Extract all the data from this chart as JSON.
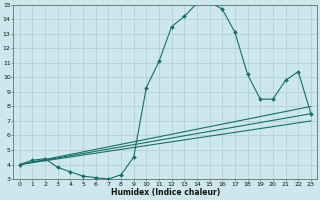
{
  "title": "",
  "xlabel": "Humidex (Indice chaleur)",
  "ylabel": "",
  "xlim": [
    -0.5,
    23.5
  ],
  "ylim": [
    3,
    15
  ],
  "xticks": [
    0,
    1,
    2,
    3,
    4,
    5,
    6,
    7,
    8,
    9,
    10,
    11,
    12,
    13,
    14,
    15,
    16,
    17,
    18,
    19,
    20,
    21,
    22,
    23
  ],
  "yticks": [
    3,
    4,
    5,
    6,
    7,
    8,
    9,
    10,
    11,
    12,
    13,
    14,
    15
  ],
  "bg_color": "#cce8ec",
  "line_color": "#1a6e6a",
  "grid_color": "#b8d4d8",
  "main_line": {
    "x": [
      0,
      1,
      2,
      3,
      4,
      5,
      6,
      7,
      8,
      9,
      10,
      11,
      12,
      13,
      14,
      15,
      16,
      17,
      18,
      19,
      20,
      21,
      22,
      23
    ],
    "y": [
      4.0,
      4.3,
      4.4,
      3.8,
      3.5,
      3.2,
      3.1,
      3.0,
      3.3,
      4.5,
      9.3,
      11.1,
      13.5,
      14.2,
      15.1,
      15.2,
      14.7,
      13.1,
      10.2,
      8.5,
      8.5,
      9.8,
      10.4,
      7.5
    ]
  },
  "straight_lines": [
    {
      "x": [
        0,
        23
      ],
      "y": [
        4.0,
        8.0
      ]
    },
    {
      "x": [
        0,
        23
      ],
      "y": [
        4.0,
        7.5
      ]
    },
    {
      "x": [
        0,
        23
      ],
      "y": [
        4.0,
        7.0
      ]
    }
  ]
}
